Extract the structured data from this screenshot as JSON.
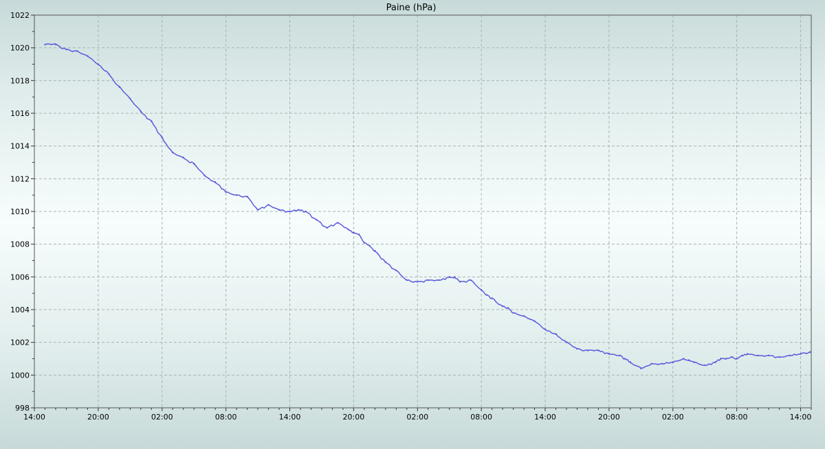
{
  "chart_data": {
    "type": "line",
    "title": "Paine (hPa)",
    "xlabel": "",
    "ylabel": "",
    "ylim": [
      998,
      1022
    ],
    "y_ticks": [
      998,
      1000,
      1002,
      1004,
      1006,
      1008,
      1010,
      1012,
      1014,
      1016,
      1018,
      1020,
      1022
    ],
    "x_range_hours": [
      0,
      73
    ],
    "x_ticks": [
      {
        "hour": 0,
        "label": "14:00"
      },
      {
        "hour": 6,
        "label": "20:00"
      },
      {
        "hour": 12,
        "label": "02:00"
      },
      {
        "hour": 18,
        "label": "08:00"
      },
      {
        "hour": 24,
        "label": "14:00"
      },
      {
        "hour": 30,
        "label": "20:00"
      },
      {
        "hour": 36,
        "label": "02:00"
      },
      {
        "hour": 42,
        "label": "08:00"
      },
      {
        "hour": 48,
        "label": "14:00"
      },
      {
        "hour": 54,
        "label": "20:00"
      },
      {
        "hour": 60,
        "label": "02:00"
      },
      {
        "hour": 66,
        "label": "08:00"
      },
      {
        "hour": 72,
        "label": "14:00"
      }
    ],
    "grid": true,
    "series": [
      {
        "color": "#5b5bdc",
        "x": [
          1.0,
          2.0,
          3.0,
          4.0,
          5.0,
          6.0,
          7.0,
          8.0,
          9.0,
          10.0,
          11.0,
          12.0,
          13.0,
          14.0,
          15.0,
          16.0,
          17.0,
          18.0,
          19.0,
          20.0,
          21.0,
          22.0,
          23.0,
          24.0,
          24.8,
          25.5,
          26.5,
          27.5,
          28.5,
          29.5,
          30.0,
          30.5,
          31.0,
          31.5,
          32.0,
          33.0,
          34.0,
          35.0,
          36.0,
          37.0,
          38.0,
          39.0,
          39.5,
          40.0,
          41.0,
          42.0,
          42.5,
          43.0,
          44.0,
          44.5,
          45.0,
          46.0,
          47.0,
          48.0,
          49.0,
          50.0,
          51.0,
          52.0,
          53.0,
          54.0,
          55.0,
          55.5,
          56.0,
          57.0,
          58.0,
          59.0,
          60.0,
          61.0,
          61.5,
          62.0,
          63.0,
          64.0,
          64.5,
          65.0,
          65.5,
          66.0,
          66.5,
          67.0,
          68.0,
          69.0,
          70.0,
          71.0,
          72.0,
          72.9
        ],
        "values": [
          1020.2,
          1020.2,
          1019.9,
          1019.8,
          1019.5,
          1019.0,
          1018.4,
          1017.6,
          1016.9,
          1016.1,
          1015.5,
          1014.5,
          1013.6,
          1013.3,
          1012.9,
          1012.2,
          1011.8,
          1011.2,
          1011.0,
          1010.9,
          1010.1,
          1010.4,
          1010.1,
          1010.0,
          1010.1,
          1010.0,
          1009.5,
          1009.0,
          1009.3,
          1008.9,
          1008.7,
          1008.6,
          1008.1,
          1007.9,
          1007.6,
          1006.9,
          1006.4,
          1005.8,
          1005.7,
          1005.8,
          1005.8,
          1006.0,
          1006.0,
          1005.7,
          1005.8,
          1005.2,
          1004.9,
          1004.7,
          1004.2,
          1004.1,
          1003.8,
          1003.6,
          1003.3,
          1002.8,
          1002.5,
          1002.0,
          1001.6,
          1001.5,
          1001.5,
          1001.3,
          1001.2,
          1001.0,
          1000.8,
          1000.4,
          1000.7,
          1000.7,
          1000.8,
          1001.0,
          1000.9,
          1000.8,
          1000.6,
          1000.8,
          1001.0,
          1001.0,
          1001.1,
          1001.0,
          1001.2,
          1001.3,
          1001.2,
          1001.2,
          1001.1,
          1001.2,
          1001.3,
          1001.4
        ]
      }
    ]
  }
}
